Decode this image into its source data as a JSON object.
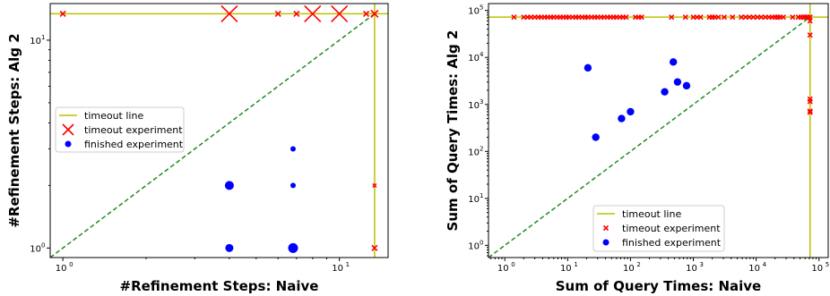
{
  "chart_data": [
    {
      "type": "scatter",
      "xlabel": "#Refinement Steps: Naive",
      "ylabel": "#Refinement Steps: Alg 2",
      "xscale": "log",
      "yscale": "log",
      "xlim": [
        0.9,
        15
      ],
      "ylim": [
        0.9,
        15
      ],
      "xticks": [
        {
          "value": 1,
          "label": "10",
          "exp": "0"
        },
        {
          "value": 10,
          "label": "10",
          "exp": "1"
        }
      ],
      "yticks": [
        {
          "value": 1,
          "label": "10",
          "exp": "0"
        },
        {
          "value": 10,
          "label": "10",
          "exp": "1"
        }
      ],
      "timeout": 13.4,
      "legend_position": "center-left",
      "legend": [
        {
          "kind": "line",
          "label": "timeout line"
        },
        {
          "kind": "x",
          "label": "timeout experiment"
        },
        {
          "kind": "dot",
          "label": "finished experiment"
        }
      ],
      "series": [
        {
          "name": "timeout experiment",
          "marker": "x",
          "color": "#ff0000",
          "points": [
            [
              1.0,
              13.4,
              3
            ],
            [
              4.0,
              13.4,
              9
            ],
            [
              6.0,
              13.4,
              3
            ],
            [
              7.0,
              13.4,
              3
            ],
            [
              8.0,
              13.4,
              9
            ],
            [
              10.0,
              13.4,
              9
            ],
            [
              12.5,
              13.4,
              3
            ],
            [
              13.4,
              13.4,
              4
            ],
            [
              13.4,
              2.0,
              2
            ],
            [
              13.4,
              1.0,
              3
            ]
          ]
        },
        {
          "name": "finished experiment",
          "marker": "dot",
          "color": "#0000ff",
          "points": [
            [
              4.0,
              2.0,
              5
            ],
            [
              4.0,
              1.0,
              4.5
            ],
            [
              6.8,
              3.0,
              3
            ],
            [
              6.8,
              2.0,
              3
            ],
            [
              6.8,
              1.0,
              5.5
            ]
          ]
        }
      ],
      "diagonal_color": "#228b22",
      "timeout_color": "#bfbf00"
    },
    {
      "type": "scatter",
      "xlabel": "Sum of Query Times: Naive",
      "ylabel": "Sum of Query Times: Alg 2",
      "xscale": "log",
      "yscale": "log",
      "xlim": [
        0.55,
        140000
      ],
      "ylim": [
        0.55,
        140000
      ],
      "xticks": [
        {
          "value": 1,
          "label": "10",
          "exp": "0"
        },
        {
          "value": 10,
          "label": "10",
          "exp": "1"
        },
        {
          "value": 100,
          "label": "10",
          "exp": "2"
        },
        {
          "value": 1000,
          "label": "10",
          "exp": "3"
        },
        {
          "value": 10000,
          "label": "10",
          "exp": "4"
        },
        {
          "value": 100000,
          "label": "10",
          "exp": "5"
        }
      ],
      "yticks": [
        {
          "value": 1,
          "label": "10",
          "exp": "0"
        },
        {
          "value": 10,
          "label": "10",
          "exp": "1"
        },
        {
          "value": 100,
          "label": "10",
          "exp": "2"
        },
        {
          "value": 1000,
          "label": "10",
          "exp": "3"
        },
        {
          "value": 10000,
          "label": "10",
          "exp": "4"
        },
        {
          "value": 100000,
          "label": "10",
          "exp": "5"
        }
      ],
      "timeout": 72000,
      "legend_position": "lower-center",
      "legend": [
        {
          "kind": "line",
          "label": "timeout line"
        },
        {
          "kind": "x",
          "label": "timeout experiment"
        },
        {
          "kind": "dot",
          "label": "finished experiment"
        }
      ],
      "series": [
        {
          "name": "timeout experiment",
          "marker": "x",
          "color": "#ff0000",
          "points": [
            [
              1.4,
              72000,
              2.5
            ],
            [
              2,
              72000,
              2.5
            ],
            [
              2.3,
              72000,
              2.5
            ],
            [
              2.6,
              72000,
              2.5
            ],
            [
              3,
              72000,
              2.5
            ],
            [
              3.4,
              72000,
              2.5
            ],
            [
              3.8,
              72000,
              2.5
            ],
            [
              4.3,
              72000,
              2.5
            ],
            [
              4.8,
              72000,
              2.5
            ],
            [
              5.4,
              72000,
              2.5
            ],
            [
              6,
              72000,
              2.5
            ],
            [
              6.8,
              72000,
              2.5
            ],
            [
              7.6,
              72000,
              2.5
            ],
            [
              8.5,
              72000,
              2.5
            ],
            [
              9.5,
              72000,
              2.5
            ],
            [
              10.5,
              72000,
              2.5
            ],
            [
              12,
              72000,
              2.5
            ],
            [
              13.5,
              72000,
              2.5
            ],
            [
              15,
              72000,
              2.5
            ],
            [
              17,
              72000,
              2.5
            ],
            [
              19,
              72000,
              2.5
            ],
            [
              21,
              72000,
              2.5
            ],
            [
              24,
              72000,
              2.5
            ],
            [
              27,
              72000,
              2.5
            ],
            [
              30,
              72000,
              2.5
            ],
            [
              34,
              72000,
              2.5
            ],
            [
              38,
              72000,
              2.5
            ],
            [
              43,
              72000,
              2.5
            ],
            [
              48,
              72000,
              2.5
            ],
            [
              54,
              72000,
              2.5
            ],
            [
              60,
              72000,
              2.5
            ],
            [
              68,
              72000,
              2.5
            ],
            [
              76,
              72000,
              2.5
            ],
            [
              85,
              72000,
              2.5
            ],
            [
              120,
              72000,
              2.5
            ],
            [
              135,
              72000,
              2.5
            ],
            [
              150,
              72000,
              2.5
            ],
            [
              450,
              72000,
              2.5
            ],
            [
              750,
              72000,
              2.5
            ],
            [
              1000,
              72000,
              2.5
            ],
            [
              1150,
              72000,
              2.5
            ],
            [
              1300,
              72000,
              2.5
            ],
            [
              1800,
              72000,
              2.5
            ],
            [
              2000,
              72000,
              2.5
            ],
            [
              2200,
              72000,
              2.5
            ],
            [
              2500,
              72000,
              2.5
            ],
            [
              3100,
              72000,
              2.5
            ],
            [
              4200,
              72000,
              2.5
            ],
            [
              5800,
              72000,
              2.5
            ],
            [
              6800,
              72000,
              2.5
            ],
            [
              7800,
              72000,
              2.5
            ],
            [
              9000,
              72000,
              2.5
            ],
            [
              10500,
              72000,
              2.5
            ],
            [
              12000,
              72000,
              2.5
            ],
            [
              14000,
              72000,
              2.5
            ],
            [
              16000,
              72000,
              2.5
            ],
            [
              18000,
              72000,
              2.5
            ],
            [
              20000,
              72000,
              2.5
            ],
            [
              22000,
              72000,
              2.5
            ],
            [
              24000,
              72000,
              2.5
            ],
            [
              27000,
              72000,
              2.5
            ],
            [
              38000,
              72000,
              2.5
            ],
            [
              47000,
              72000,
              2.5
            ],
            [
              52000,
              72000,
              2.5
            ],
            [
              57000,
              72000,
              2.5
            ],
            [
              62000,
              72000,
              2.5
            ],
            [
              66000,
              72000,
              2.5
            ],
            [
              72000,
              72000,
              2.5
            ],
            [
              72000,
              60000,
              2.5
            ],
            [
              72000,
              30000,
              2.5
            ],
            [
              72000,
              1300,
              2.5
            ],
            [
              72000,
              1150,
              2.5
            ],
            [
              72000,
              720,
              2.5
            ],
            [
              72000,
              680,
              2.5
            ]
          ]
        },
        {
          "name": "finished experiment",
          "marker": "dot",
          "color": "#0000ff",
          "points": [
            [
              21,
              6000,
              4.2
            ],
            [
              28,
              200,
              4.2
            ],
            [
              72,
              500,
              4.2
            ],
            [
              100,
              700,
              4.2
            ],
            [
              350,
              1850,
              4.2
            ],
            [
              480,
              8000,
              4.2
            ],
            [
              560,
              3000,
              4.2
            ],
            [
              780,
              2500,
              4.2
            ]
          ]
        }
      ],
      "diagonal_color": "#228b22",
      "timeout_color": "#bfbf00"
    }
  ]
}
